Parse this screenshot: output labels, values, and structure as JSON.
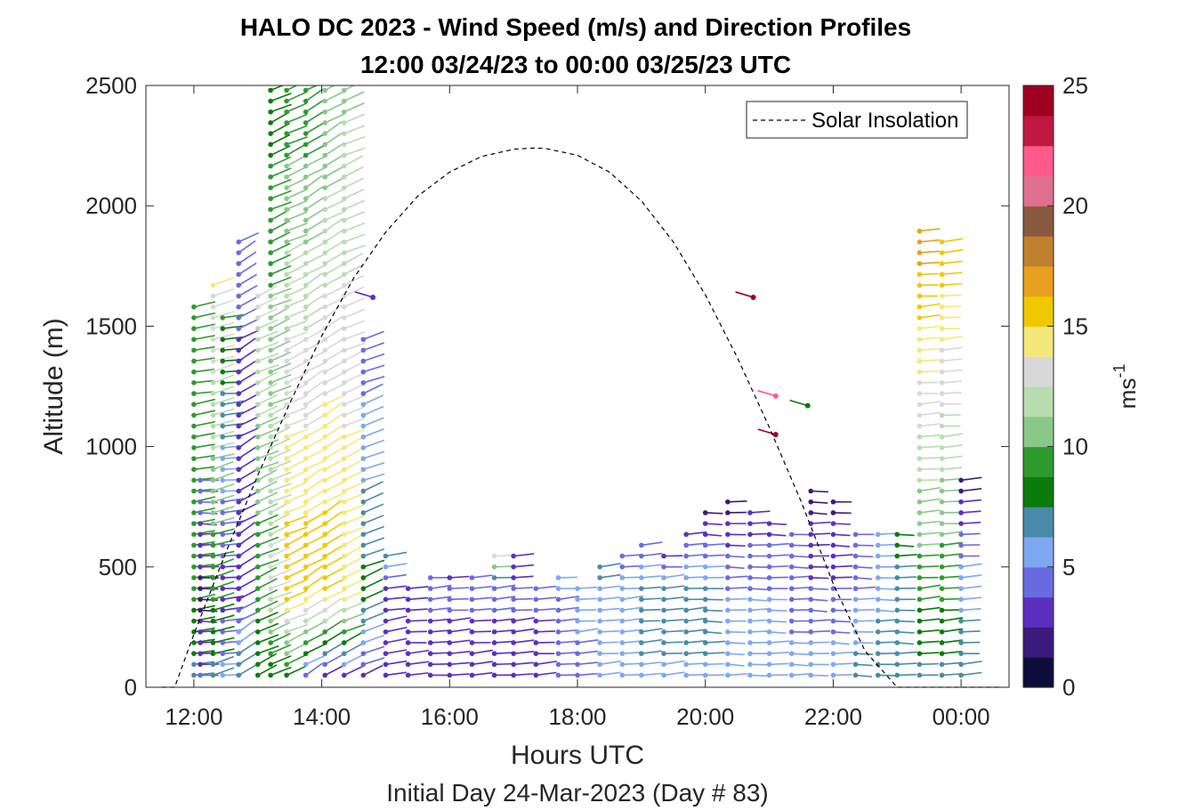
{
  "chart_data": {
    "type": "wind-barb-profile",
    "title_line1": "HALO DC 2023 - Wind Speed (m/s) and Direction Profiles",
    "title_line2": "12:00 03/24/23 to 00:00 03/25/23  UTC",
    "xlabel": "Hours UTC",
    "xsublabel": "Initial Day 24-Mar-2023 (Day # 83)",
    "ylabel": "Altitude (m)",
    "xlim": [
      11.25,
      24.75
    ],
    "ylim": [
      0,
      2500
    ],
    "xticks": [
      12,
      14,
      16,
      18,
      20,
      22,
      24
    ],
    "xtick_labels": [
      "12:00",
      "14:00",
      "16:00",
      "18:00",
      "20:00",
      "22:00",
      "00:00"
    ],
    "yticks": [
      0,
      500,
      1000,
      1500,
      2000,
      2500
    ],
    "ytick_labels": [
      "0",
      "500",
      "1000",
      "1500",
      "2000",
      "2500"
    ],
    "colorbar": {
      "label": "ms",
      "label_exponent": "-1",
      "range": [
        0,
        25
      ],
      "ticks": [
        0,
        5,
        10,
        15,
        20,
        25
      ],
      "tick_labels": [
        "0",
        "5",
        "10",
        "15",
        "20",
        "25"
      ],
      "colors": [
        "#0d0d3a",
        "#3a1a7a",
        "#5a2fc0",
        "#6a6ae0",
        "#7ea8f0",
        "#4a8aa8",
        "#0a7a0a",
        "#2e9a2e",
        "#8ac88a",
        "#b8dcb0",
        "#d8d8d8",
        "#f5e87a",
        "#f0c800",
        "#e8a020",
        "#c08030",
        "#8a5a40",
        "#e07090",
        "#ff5a8a",
        "#c01840",
        "#a00020"
      ]
    },
    "legend": {
      "label": "Solar Insolation",
      "style": "dashed black line",
      "position": "top-right"
    },
    "solar_insolation": {
      "x": [
        11.5,
        11.7,
        12,
        12.5,
        13,
        13.5,
        14,
        14.5,
        15,
        15.5,
        16,
        16.5,
        17,
        17.3,
        17.5,
        18,
        18.5,
        19,
        19.5,
        20,
        20.5,
        21,
        21.5,
        22,
        22.5,
        23,
        23.5,
        24,
        24.6
      ],
      "y": [
        0,
        0,
        220,
        560,
        880,
        1180,
        1460,
        1700,
        1890,
        2040,
        2140,
        2205,
        2235,
        2240,
        2238,
        2210,
        2140,
        2020,
        1850,
        1630,
        1370,
        1080,
        770,
        430,
        150,
        0,
        0,
        0,
        0
      ]
    },
    "profiles": [
      {
        "t": 12.0,
        "z_top": 1600,
        "speed_low": 7,
        "speed_mid": 9,
        "speed_top": 10,
        "dir": 260
      },
      {
        "t": 12.1,
        "z_top": 900,
        "speed_low": 4,
        "speed_mid": 2,
        "speed_top": 5,
        "dir": 240
      },
      {
        "t": 12.3,
        "z_top": 1700,
        "speed_low": 7,
        "speed_mid": 9,
        "speed_top": 14,
        "dir": 275
      },
      {
        "t": 12.45,
        "z_top": 1550,
        "speed_low": 6,
        "speed_mid": 3,
        "speed_top": 9,
        "dir": 250
      },
      {
        "t": 12.7,
        "z_top": 1850,
        "speed_low": 8,
        "speed_mid": 3,
        "speed_top": 4,
        "dir": 300
      },
      {
        "t": 13.0,
        "z_top": 1650,
        "speed_low": 8,
        "speed_mid": 9,
        "speed_top": 13,
        "dir": 290
      },
      {
        "t": 13.2,
        "z_top": 2500,
        "speed_low": 7,
        "speed_mid": 13,
        "speed_top": 8,
        "dir": 290
      },
      {
        "t": 13.45,
        "z_top": 2500,
        "speed_low": 7,
        "speed_mid": 16,
        "speed_top": 9,
        "dir": 290
      },
      {
        "t": 13.75,
        "z_top": 2500,
        "speed_low": 3,
        "speed_mid": 16,
        "speed_top": 9,
        "dir": 300
      },
      {
        "t": 14.05,
        "z_top": 2500,
        "speed_low": 1.5,
        "speed_mid": 16,
        "speed_top": 10,
        "dir": 300
      },
      {
        "t": 14.35,
        "z_top": 2500,
        "speed_low": 2,
        "speed_mid": 15,
        "speed_top": 11,
        "dir": 290
      },
      {
        "t": 14.65,
        "z_top": 1450,
        "speed_low": 3,
        "speed_mid": 8,
        "speed_top": 4,
        "dir": 285
      },
      {
        "t": 15.0,
        "z_top": 550,
        "speed_low": 3,
        "speed_mid": 3,
        "speed_top": 7,
        "dir": 260
      },
      {
        "t": 15.35,
        "z_top": 450,
        "speed_low": 3,
        "speed_mid": 3,
        "speed_top": 3,
        "dir": 250
      },
      {
        "t": 15.7,
        "z_top": 480,
        "speed_low": 3,
        "speed_mid": 4,
        "speed_top": 5,
        "dir": 250
      },
      {
        "t": 16.0,
        "z_top": 480,
        "speed_low": 3,
        "speed_mid": 4,
        "speed_top": 2,
        "dir": 250
      },
      {
        "t": 16.35,
        "z_top": 460,
        "speed_low": 3,
        "speed_mid": 4,
        "speed_top": 5,
        "dir": 250
      },
      {
        "t": 16.7,
        "z_top": 580,
        "speed_low": 3,
        "speed_mid": 4,
        "speed_top": 15,
        "dir": 250
      },
      {
        "t": 17.0,
        "z_top": 550,
        "speed_low": 3,
        "speed_mid": 4,
        "speed_top": 3,
        "dir": 250
      },
      {
        "t": 17.35,
        "z_top": 450,
        "speed_low": 3,
        "speed_mid": 4,
        "speed_top": 4,
        "dir": 250
      },
      {
        "t": 17.7,
        "z_top": 480,
        "speed_low": 4,
        "speed_mid": 5,
        "speed_top": 5,
        "dir": 250
      },
      {
        "t": 18.0,
        "z_top": 440,
        "speed_low": 4,
        "speed_mid": 6,
        "speed_top": 3,
        "dir": 250
      },
      {
        "t": 18.35,
        "z_top": 520,
        "speed_low": 5,
        "speed_mid": 6,
        "speed_top": 7,
        "dir": 250
      },
      {
        "t": 18.7,
        "z_top": 580,
        "speed_low": 6,
        "speed_mid": 6,
        "speed_top": 4,
        "dir": 250
      },
      {
        "t": 19.0,
        "z_top": 600,
        "speed_low": 6,
        "speed_mid": 7,
        "speed_top": 4,
        "dir": 250
      },
      {
        "t": 19.35,
        "z_top": 560,
        "speed_low": 6,
        "speed_mid": 7,
        "speed_top": 3,
        "dir": 250
      },
      {
        "t": 19.7,
        "z_top": 650,
        "speed_low": 6,
        "speed_mid": 7,
        "speed_top": 3,
        "dir": 250
      },
      {
        "t": 20.0,
        "z_top": 750,
        "speed_low": 6,
        "speed_mid": 7,
        "speed_top": 2,
        "dir": 240
      },
      {
        "t": 20.35,
        "z_top": 780,
        "speed_low": 6,
        "speed_mid": 5,
        "speed_top": 2,
        "dir": 240
      },
      {
        "t": 20.7,
        "z_top": 750,
        "speed_low": 6,
        "speed_mid": 5,
        "speed_top": 3,
        "dir": 240
      },
      {
        "t": 21.0,
        "z_top": 720,
        "speed_low": 6,
        "speed_mid": 5,
        "speed_top": 3,
        "dir": 240
      },
      {
        "t": 21.35,
        "z_top": 650,
        "speed_low": 6,
        "speed_mid": 4,
        "speed_top": 4,
        "dir": 240
      },
      {
        "t": 21.65,
        "z_top": 820,
        "speed_low": 6,
        "speed_mid": 4,
        "speed_top": 2,
        "dir": 240
      },
      {
        "t": 22.0,
        "z_top": 800,
        "speed_low": 6,
        "speed_mid": 4,
        "speed_top": 2,
        "dir": 240
      },
      {
        "t": 22.35,
        "z_top": 660,
        "speed_low": 7,
        "speed_mid": 5,
        "speed_top": 4,
        "dir": 240
      },
      {
        "t": 22.7,
        "z_top": 650,
        "speed_low": 7,
        "speed_mid": 6,
        "speed_top": 6,
        "dir": 240
      },
      {
        "t": 23.0,
        "z_top": 650,
        "speed_low": 7,
        "speed_mid": 7,
        "speed_top": 8,
        "dir": 240
      },
      {
        "t": 23.35,
        "z_top": 1900,
        "speed_low": 7,
        "speed_mid": 9,
        "speed_top": 17,
        "dir": 250
      },
      {
        "t": 23.7,
        "z_top": 1880,
        "speed_low": 7,
        "speed_mid": 9,
        "speed_top": 16,
        "dir": 250
      },
      {
        "t": 24.0,
        "z_top": 860,
        "speed_low": 7,
        "speed_mid": 6,
        "speed_top": 2,
        "dir": 250
      }
    ],
    "isolated_barbs": [
      {
        "t": 14.8,
        "z": 1620,
        "speed": 3
      },
      {
        "t": 20.75,
        "z": 1620,
        "speed": 24
      },
      {
        "t": 21.1,
        "z": 1210,
        "speed": 22
      },
      {
        "t": 21.1,
        "z": 1050,
        "speed": 24
      },
      {
        "t": 21.6,
        "z": 1170,
        "speed": 8
      }
    ]
  }
}
